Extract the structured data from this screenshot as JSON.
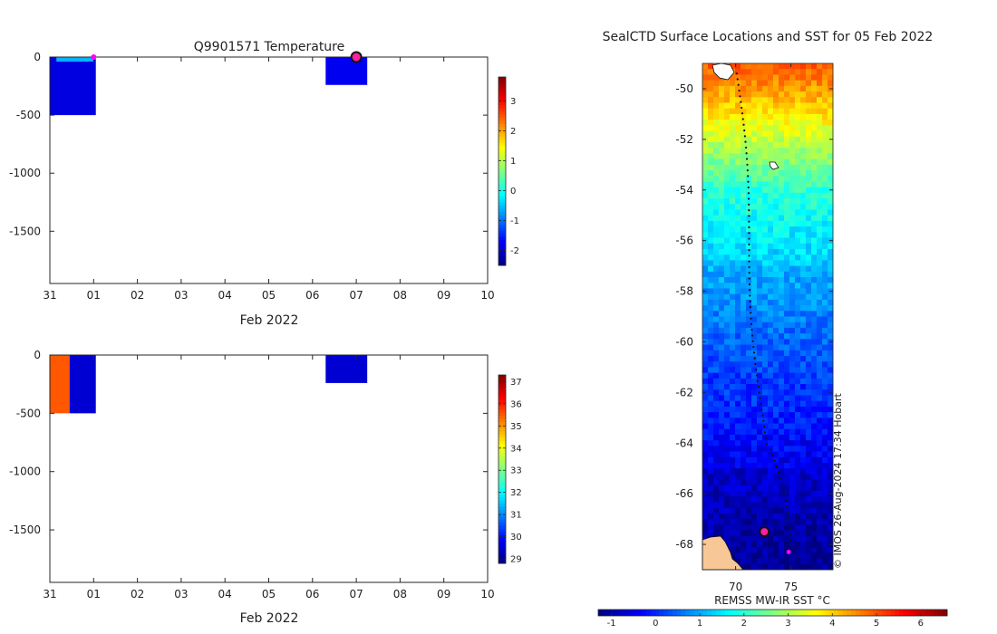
{
  "chart_data": [
    {
      "type": "heatmap",
      "title": "Q9901571  Temperature",
      "xlabel": "Feb 2022",
      "x_ticks": [
        "31",
        "01",
        "02",
        "03",
        "04",
        "05",
        "06",
        "07",
        "08",
        "09",
        "10"
      ],
      "y_ticks": [
        "0",
        "-500",
        "-1000",
        "-1500"
      ],
      "ylim": [
        -1950,
        0
      ],
      "colorbar": {
        "ticks": [
          "3",
          "2",
          "1",
          "0",
          "-1",
          "-2"
        ],
        "range": [
          -2.5,
          3.8
        ]
      },
      "profiles": [
        {
          "start_day": 0.0,
          "end_day": 1.05,
          "depth_max": 500,
          "value": -1.9
        },
        {
          "start_day": 6.3,
          "end_day": 7.25,
          "depth_max": 240,
          "value": -1.8
        }
      ],
      "markers": [
        {
          "day": 1.0,
          "depth": 0,
          "kind": "magenta-dot"
        },
        {
          "day": 7.0,
          "depth": 0,
          "kind": "current-ring"
        }
      ]
    },
    {
      "type": "heatmap",
      "title": "",
      "xlabel": "Feb 2022",
      "x_ticks": [
        "31",
        "01",
        "02",
        "03",
        "04",
        "05",
        "06",
        "07",
        "08",
        "09",
        "10"
      ],
      "y_ticks": [
        "0",
        "-500",
        "-1000",
        "-1500"
      ],
      "ylim": [
        -1950,
        0
      ],
      "colorbar": {
        "ticks": [
          "37",
          "36",
          "35",
          "34",
          "33",
          "32",
          "31",
          "30",
          "29"
        ],
        "range": [
          28.8,
          37.3
        ]
      },
      "profiles": [
        {
          "start_day": 0.0,
          "end_day": 0.45,
          "depth_max": 500,
          "value": 35.5
        },
        {
          "start_day": 0.45,
          "end_day": 1.05,
          "depth_max": 500,
          "value": 29.5
        },
        {
          "start_day": 6.3,
          "end_day": 7.25,
          "depth_max": 240,
          "value": 29.5
        }
      ]
    },
    {
      "type": "heatmap",
      "title": "SealCTD Surface Locations and SST for 05 Feb 2022",
      "xlabel": "REMSS MW-IR SST °C",
      "x_ticks": [
        "70",
        "75"
      ],
      "y_ticks": [
        "-50",
        "-52",
        "-54",
        "-56",
        "-58",
        "-60",
        "-62",
        "-64",
        "-66",
        "-68"
      ],
      "xlim": [
        67,
        78.8
      ],
      "ylim": [
        -69,
        -49
      ],
      "colorbar": {
        "ticks": [
          "-1",
          "0",
          "1",
          "2",
          "3",
          "4",
          "5",
          "6"
        ],
        "range": [
          -1.3,
          6.6
        ]
      },
      "track": {
        "start_lat": -49.4,
        "end_lat": -68.3
      },
      "current_position": {
        "lon": 72.6,
        "lat": -67.5
      },
      "last_position": {
        "lon": 74.8,
        "lat": -68.3
      }
    }
  ],
  "watermark": "© IMOS 26-Aug-2024 17:34 Hobart"
}
